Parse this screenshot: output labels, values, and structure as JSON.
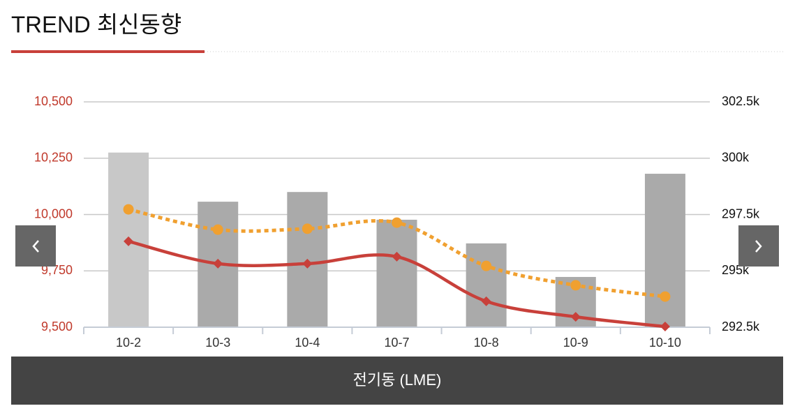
{
  "header": {
    "title": "TREND 최신동향"
  },
  "chart_data": {
    "type": "bar-line",
    "categories": [
      "10-2",
      "10-3",
      "10-4",
      "10-7",
      "10-8",
      "10-9",
      "10-10"
    ],
    "series": [
      {
        "type": "bar",
        "axis": "y2",
        "colors": [
          "#c8c8c8",
          "#aaaaaa",
          "#aaaaaa",
          "#aaaaaa",
          "#aaaaaa",
          "#aaaaaa",
          "#aaaaaa"
        ],
        "values": [
          300250,
          298070,
          298500,
          297270,
          296220,
          294730,
          299310
        ]
      },
      {
        "type": "line",
        "marker": "diamond",
        "color": "#c8403a",
        "values": [
          9881,
          9782,
          9782,
          9813,
          9615,
          9546,
          9503
        ]
      },
      {
        "type": "line",
        "marker": "circle",
        "dashed": true,
        "color": "#f0a030",
        "values": [
          10023,
          9933,
          9937,
          9964,
          9772,
          9686,
          9636
        ]
      }
    ],
    "ylim": [
      9500,
      10500
    ],
    "yticks": [
      {
        "value": 9500,
        "label": "9,500"
      },
      {
        "value": 9750,
        "label": "9,750"
      },
      {
        "value": 10000,
        "label": "10,000"
      },
      {
        "value": 10250,
        "label": "10,250"
      },
      {
        "value": 10500,
        "label": "10,500"
      }
    ],
    "y2lim": [
      292500,
      302500
    ],
    "y2ticks": [
      {
        "value": 292500,
        "label": "292.5k"
      },
      {
        "value": 295000,
        "label": "295k"
      },
      {
        "value": 297500,
        "label": "297.5k"
      },
      {
        "value": 300000,
        "label": "300k"
      },
      {
        "value": 302500,
        "label": "302.5k"
      }
    ],
    "grid": true
  },
  "footer": {
    "label": "전기동 (LME)"
  }
}
